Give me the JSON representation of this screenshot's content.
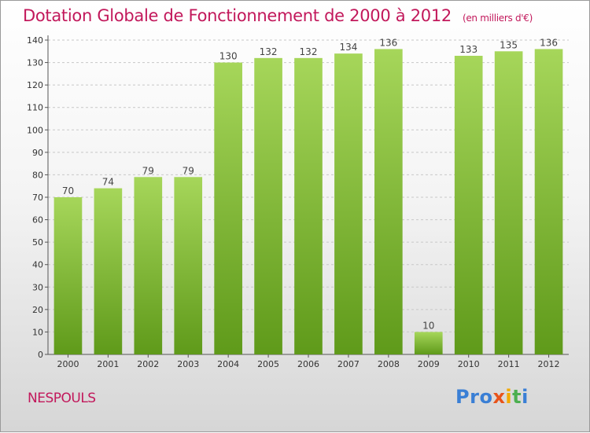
{
  "title": "Dotation Globale de Fonctionnement de 2000 à 2012",
  "unit": "(en milliers d'€)",
  "commune": "NESPOULS",
  "logo": {
    "letters": [
      "P",
      "r",
      "o",
      "x",
      "i",
      "t",
      "i"
    ],
    "colors": [
      "#3a7fd5",
      "#3a7fd5",
      "#3a7fd5",
      "#e8531a",
      "#f2a900",
      "#4caf50",
      "#3a7fd5"
    ]
  },
  "colors": {
    "bar_top": "#a6d65a",
    "bar_bottom": "#5f9a1a",
    "accent": "#c2185b",
    "grid": "#c8c8c8"
  },
  "chart_data": {
    "type": "bar",
    "title": "Dotation Globale de Fonctionnement de 2000 à 2012",
    "xlabel": "",
    "ylabel": "",
    "categories": [
      "2000",
      "2001",
      "2002",
      "2003",
      "2004",
      "2005",
      "2006",
      "2007",
      "2008",
      "2009",
      "2010",
      "2011",
      "2012"
    ],
    "values": [
      70,
      74,
      79,
      79,
      130,
      132,
      132,
      134,
      136,
      10,
      133,
      135,
      136
    ],
    "ylim": [
      0,
      140
    ],
    "yticks": [
      0,
      10,
      20,
      30,
      40,
      50,
      60,
      70,
      80,
      90,
      100,
      110,
      120,
      130,
      140
    ],
    "grid": true
  }
}
